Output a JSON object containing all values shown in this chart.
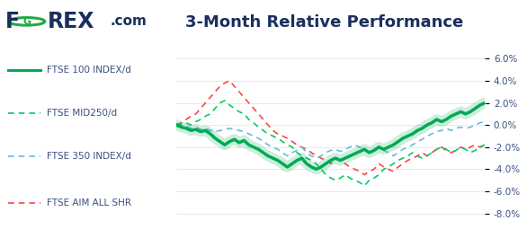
{
  "title": "3-Month Relative Performance",
  "yticks": [
    -8.0,
    -6.0,
    -4.0,
    -2.0,
    0.0,
    2.0,
    4.0,
    6.0
  ],
  "ytick_labels": [
    "-8.0%",
    "-6.0%",
    "-4.0%",
    "-2.0%",
    "0.0%",
    "2.0%",
    "4.0%",
    "6.0%"
  ],
  "ylim": [
    -8.5,
    7.0
  ],
  "title_color": "#1a2f5e",
  "title_fontsize": 13,
  "tick_color": "#3a5080",
  "background_color": "#ffffff",
  "series": {
    "ftse100": {
      "label": "FTSE 100 INDEX/d",
      "color": "#00aa55",
      "linewidth": 2.5,
      "linestyle": "-",
      "zorder": 5
    },
    "ftse_mid250": {
      "label": "FTSE MID250/d",
      "color": "#00cc66",
      "linewidth": 1.2,
      "linestyle": "--",
      "zorder": 3
    },
    "ftse350": {
      "label": "FTSE 350 INDEX/d",
      "color": "#66bbdd",
      "linewidth": 1.2,
      "linestyle": "--",
      "zorder": 3
    },
    "ftse_aim": {
      "label": "FTSE AIM ALL SHR",
      "color": "#ff4444",
      "linewidth": 1.2,
      "linestyle": "--",
      "zorder": 3
    }
  },
  "ftse100_data": [
    0.0,
    -0.2,
    -0.3,
    -0.5,
    -0.4,
    -0.6,
    -0.5,
    -0.8,
    -1.2,
    -1.5,
    -1.8,
    -1.5,
    -1.3,
    -1.6,
    -1.4,
    -1.8,
    -2.0,
    -2.2,
    -2.5,
    -2.8,
    -3.0,
    -3.2,
    -3.5,
    -3.8,
    -3.5,
    -3.2,
    -3.0,
    -3.5,
    -3.8,
    -4.0,
    -3.8,
    -3.5,
    -3.2,
    -3.0,
    -3.2,
    -3.0,
    -2.8,
    -2.6,
    -2.4,
    -2.2,
    -2.5,
    -2.3,
    -2.0,
    -2.2,
    -2.0,
    -1.8,
    -1.5,
    -1.2,
    -1.0,
    -0.8,
    -0.5,
    -0.3,
    0.0,
    0.2,
    0.5,
    0.3,
    0.5,
    0.8,
    1.0,
    1.2,
    1.0,
    1.2,
    1.5,
    1.8,
    2.0
  ],
  "ftse_mid250_data": [
    0.1,
    0.0,
    0.2,
    0.0,
    0.3,
    0.5,
    0.8,
    1.0,
    1.5,
    2.0,
    2.2,
    1.8,
    1.5,
    1.2,
    1.0,
    0.5,
    0.2,
    -0.2,
    -0.5,
    -0.8,
    -1.0,
    -1.2,
    -1.5,
    -1.8,
    -2.0,
    -2.5,
    -2.8,
    -3.0,
    -3.2,
    -3.5,
    -4.0,
    -4.5,
    -4.8,
    -5.0,
    -4.8,
    -4.5,
    -4.8,
    -5.0,
    -5.2,
    -5.5,
    -5.0,
    -4.8,
    -4.5,
    -4.0,
    -3.8,
    -3.5,
    -3.2,
    -3.0,
    -2.8,
    -2.5,
    -2.8,
    -3.0,
    -2.8,
    -2.5,
    -2.2,
    -2.0,
    -2.2,
    -2.5,
    -2.3,
    -2.0,
    -2.2,
    -2.5,
    -2.3,
    -2.0,
    -1.8
  ],
  "ftse350_data": [
    -0.1,
    -0.2,
    -0.1,
    -0.3,
    -0.2,
    -0.4,
    -0.3,
    -0.5,
    -0.6,
    -0.5,
    -0.4,
    -0.3,
    -0.4,
    -0.5,
    -0.6,
    -0.8,
    -1.0,
    -1.2,
    -1.5,
    -1.8,
    -2.0,
    -2.2,
    -2.5,
    -2.8,
    -2.5,
    -2.3,
    -2.0,
    -2.5,
    -2.8,
    -3.0,
    -2.8,
    -2.5,
    -2.3,
    -2.2,
    -2.4,
    -2.2,
    -2.0,
    -1.8,
    -2.0,
    -2.2,
    -2.5,
    -2.3,
    -2.0,
    -2.3,
    -2.5,
    -2.8,
    -2.5,
    -2.2,
    -2.0,
    -1.8,
    -1.5,
    -1.3,
    -1.0,
    -0.8,
    -0.6,
    -0.5,
    -0.3,
    -0.5,
    -0.3,
    -0.2,
    -0.3,
    -0.2,
    0.0,
    0.2,
    0.3
  ],
  "ftse_aim_data": [
    0.0,
    0.2,
    0.5,
    0.8,
    1.0,
    1.5,
    2.0,
    2.5,
    3.0,
    3.5,
    3.8,
    4.0,
    3.5,
    3.0,
    2.5,
    2.0,
    1.5,
    1.0,
    0.5,
    0.0,
    -0.5,
    -0.8,
    -1.0,
    -1.2,
    -1.5,
    -1.8,
    -2.0,
    -2.2,
    -2.5,
    -2.8,
    -3.0,
    -3.2,
    -3.5,
    -3.0,
    -3.2,
    -3.5,
    -3.8,
    -4.0,
    -4.2,
    -4.5,
    -4.2,
    -4.0,
    -3.5,
    -3.8,
    -4.0,
    -4.2,
    -3.8,
    -3.5,
    -3.2,
    -3.0,
    -2.8,
    -2.5,
    -2.8,
    -2.5,
    -2.2,
    -2.0,
    -2.3,
    -2.5,
    -2.3,
    -2.0,
    -2.2,
    -2.0,
    -1.8,
    -2.0,
    -1.8
  ]
}
